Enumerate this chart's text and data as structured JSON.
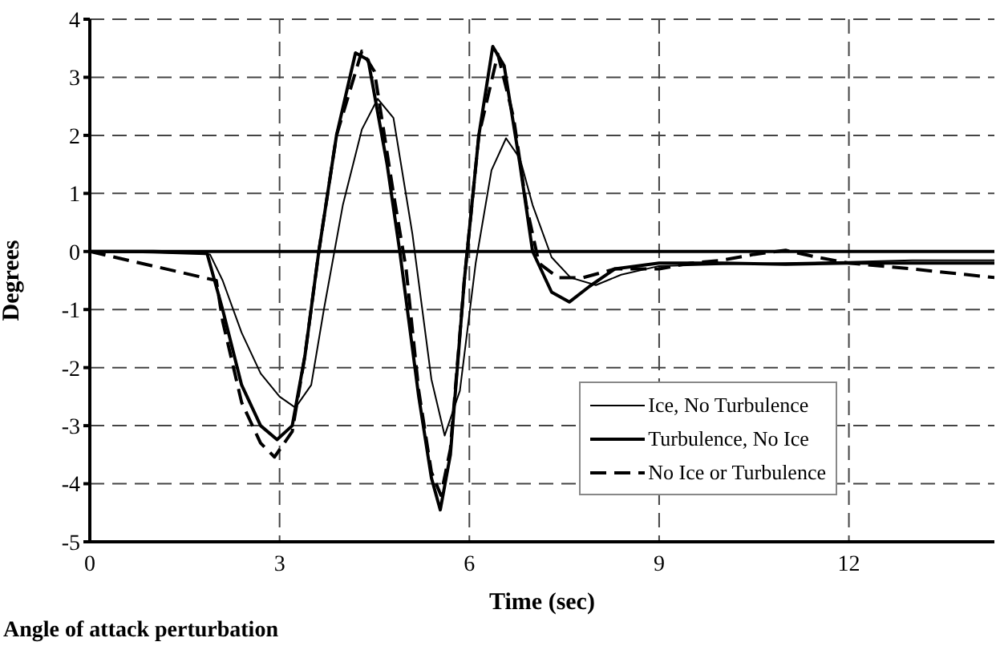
{
  "chart_data": {
    "type": "line",
    "xlabel": "Time (sec)",
    "ylabel": "Degrees",
    "annotations": [
      "Angle of attack perturbation"
    ],
    "xlim": [
      0,
      14.3
    ],
    "xticks": [
      0,
      3,
      6,
      9,
      12
    ],
    "ylim": [
      -5,
      4
    ],
    "yticks": [
      4,
      3,
      2,
      1,
      0,
      -1,
      -2,
      -3,
      -4,
      -5
    ],
    "grid": true,
    "legend": "bottom right",
    "marker": "none",
    "ref_lines": [
      {
        "axis": "y",
        "value": 0,
        "color": "#000000",
        "line_style": "solid"
      }
    ],
    "series": [
      {
        "name": "Ice, No Turbulence",
        "color": "#000000",
        "line_style": "solid",
        "x": [
          0,
          1,
          1.9,
          2.1,
          2.4,
          2.7,
          3.0,
          3.25,
          3.5,
          3.7,
          4.0,
          4.3,
          4.55,
          4.8,
          5.1,
          5.4,
          5.61,
          5.85,
          6.1,
          6.35,
          6.58,
          6.8,
          7.0,
          7.3,
          7.6,
          8.0,
          8.4,
          9,
          10,
          11,
          12,
          13,
          14.3
        ],
        "values": [
          0,
          -0.02,
          -0.05,
          -0.5,
          -1.4,
          -2.1,
          -2.5,
          -2.69,
          -2.3,
          -1.0,
          0.8,
          2.1,
          2.63,
          2.3,
          0.3,
          -2.2,
          -3.17,
          -2.4,
          -0.2,
          1.4,
          1.95,
          1.6,
          0.8,
          -0.1,
          -0.45,
          -0.58,
          -0.4,
          -0.25,
          -0.22,
          -0.2,
          -0.18,
          -0.15,
          -0.15
        ]
      },
      {
        "name": "Turbulence, No Ice",
        "color": "#000000",
        "line_style": "solid",
        "x": [
          0,
          1,
          1.85,
          2.1,
          2.4,
          2.7,
          2.96,
          3.2,
          3.4,
          3.62,
          3.9,
          4.2,
          4.4,
          4.7,
          4.9,
          5.2,
          5.4,
          5.54,
          5.7,
          5.92,
          6.15,
          6.37,
          6.55,
          6.8,
          7.0,
          7.3,
          7.58,
          7.9,
          8.3,
          9,
          10,
          11,
          12,
          13,
          14.3
        ],
        "values": [
          0,
          0,
          -0.02,
          -1.0,
          -2.3,
          -3.0,
          -3.24,
          -3.0,
          -1.8,
          0,
          2.0,
          3.42,
          3.3,
          1.5,
          0,
          -2.5,
          -3.9,
          -4.45,
          -3.5,
          -0.5,
          2.0,
          3.53,
          3.2,
          1.5,
          0,
          -0.7,
          -0.87,
          -0.6,
          -0.3,
          -0.2,
          -0.2,
          -0.22,
          -0.2,
          -0.2,
          -0.2
        ]
      },
      {
        "name": "No Ice or Turbulence",
        "color": "#000000",
        "line_style": "dashed",
        "x": [
          0,
          1,
          2,
          2.1,
          2.4,
          2.7,
          2.92,
          3.2,
          3.4,
          3.62,
          3.9,
          4.3,
          4.5,
          4.8,
          5.0,
          5.2,
          5.4,
          5.55,
          5.7,
          5.92,
          6.15,
          6.45,
          6.7,
          6.9,
          7.1,
          7.4,
          7.8,
          8.3,
          9,
          9.5,
          10,
          10.5,
          11,
          11.5,
          12,
          13,
          14.3
        ],
        "values": [
          0,
          -0.25,
          -0.5,
          -1.2,
          -2.6,
          -3.3,
          -3.54,
          -3.1,
          -1.8,
          0,
          2.0,
          3.45,
          3.1,
          1.0,
          -0.3,
          -2.4,
          -3.8,
          -4.2,
          -3.4,
          -0.5,
          2.0,
          3.4,
          2.3,
          0.8,
          -0.2,
          -0.45,
          -0.45,
          -0.3,
          -0.3,
          -0.2,
          -0.15,
          -0.05,
          0.02,
          -0.1,
          -0.2,
          -0.3,
          -0.45
        ]
      }
    ]
  }
}
